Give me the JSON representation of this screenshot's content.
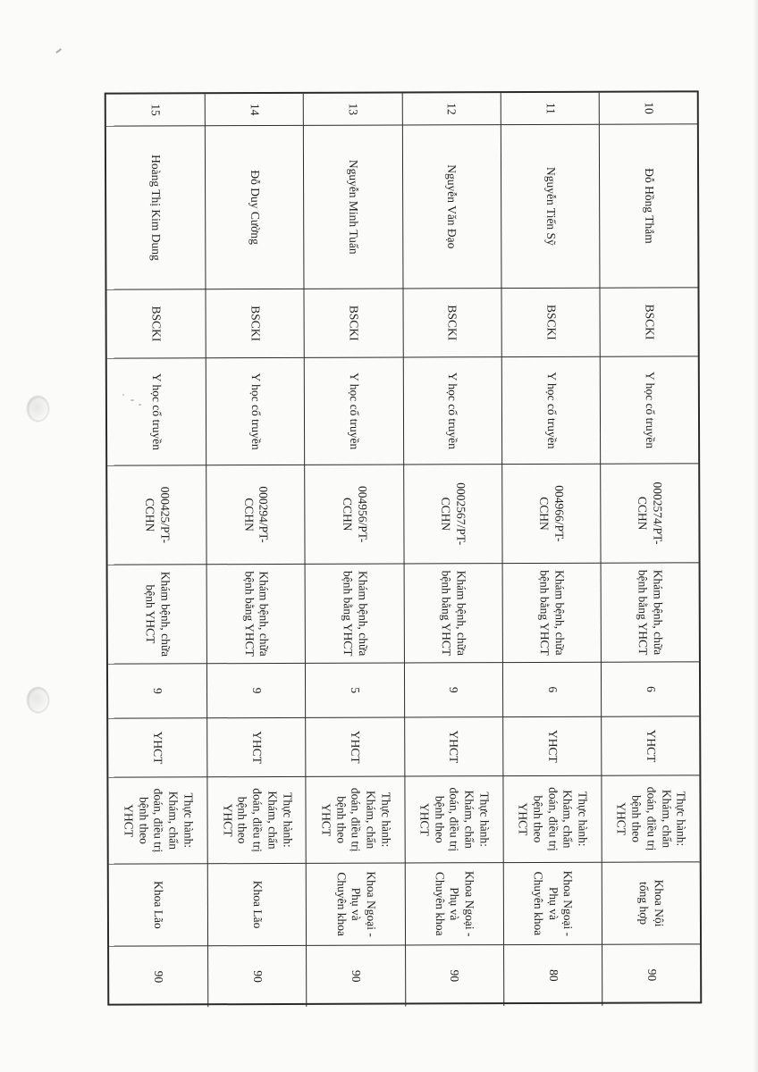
{
  "colors": {
    "paper": "#fbfbf9",
    "ink": "#222222",
    "line": "#2b2b2b"
  },
  "table": {
    "orientation_note": "rotated 90 degrees clockwise on scanned page",
    "rows": [
      {
        "stt": "10",
        "name": "Đỗ Hồng Thắm",
        "title": "BSCKI",
        "specialty": "Y học cổ truyền",
        "cert": "0002574/PT-\nCCHN",
        "scope": "Khám bệnh, chữa\nbệnh bằng YHCT",
        "years": "6",
        "lang": "YHCT",
        "practice": "Thực hành:\nKhám, chẩn\nđoán, điều trị\nbệnh theo\nYHCT",
        "dept": "Khoa Nội\ntổng hợp",
        "hours": "90"
      },
      {
        "stt": "11",
        "name": "Nguyễn Tiến Sỹ",
        "title": "BSCKI",
        "specialty": "Y học cổ truyền",
        "cert": "004966/PT-\nCCHN",
        "scope": "Khám bệnh, chữa\nbệnh bằng YHCT",
        "years": "6",
        "lang": "YHCT",
        "practice": "Thực hành:\nKhám, chẩn\nđoán, điều trị\nbệnh theo\nYHCT",
        "dept": "Khoa Ngoại -\nPhụ và\nChuyên khoa",
        "hours": "80"
      },
      {
        "stt": "12",
        "name": "Nguyễn Văn Đạo",
        "title": "BSCKI",
        "specialty": "Y học cổ truyền",
        "cert": "0002567/PT-\nCCHN",
        "scope": "Khám bệnh, chữa\nbệnh bằng YHCT",
        "years": "9",
        "lang": "YHCT",
        "practice": "Thực hành:\nKhám, chẩn\nđoán, điều trị\nbệnh theo\nYHCT",
        "dept": "Khoa Ngoại -\nPhụ và\nChuyên khoa",
        "hours": "90"
      },
      {
        "stt": "13",
        "name": "Nguyễn Minh Tuấn",
        "title": "BSCKI",
        "specialty": "Y học cổ truyền",
        "cert": "004956/PT-\nCCHN",
        "scope": "Khám bệnh, chữa\nbệnh bằng YHCT",
        "years": "5",
        "lang": "YHCT",
        "practice": "Thực hành:\nKhám, chẩn\nđoán, điều trị\nbệnh theo\nYHCT",
        "dept": "Khoa Ngoại -\nPhụ và\nChuyên khoa",
        "hours": "90"
      },
      {
        "stt": "14",
        "name": "Đỗ Duy Cường",
        "title": "BSCKI",
        "specialty": "Y học cổ truyền",
        "cert": "000294/PT-\nCCHN",
        "scope": "Khám bệnh, chữa\nbệnh bằng YHCT",
        "years": "9",
        "lang": "YHCT",
        "practice": "Thực hành:\nKhám, chẩn\nđoán, điều trị\nbệnh theo\nYHCT",
        "dept": "Khoa Lão",
        "hours": "90"
      },
      {
        "stt": "15",
        "name": "Hoàng Thị Kim Dung",
        "title": "BSCKI",
        "specialty": "Y học cổ truyền",
        "cert": "000425/PT-\nCCHN",
        "scope": "Khám bệnh, chữa\nbệnh YHCT",
        "years": "9",
        "lang": "YHCT",
        "practice": "Thực hành:\nKhám, chẩn\nđoán, điều trị\nbệnh theo\nYHCT",
        "dept": "Khoa Lão",
        "hours": "90"
      }
    ]
  }
}
